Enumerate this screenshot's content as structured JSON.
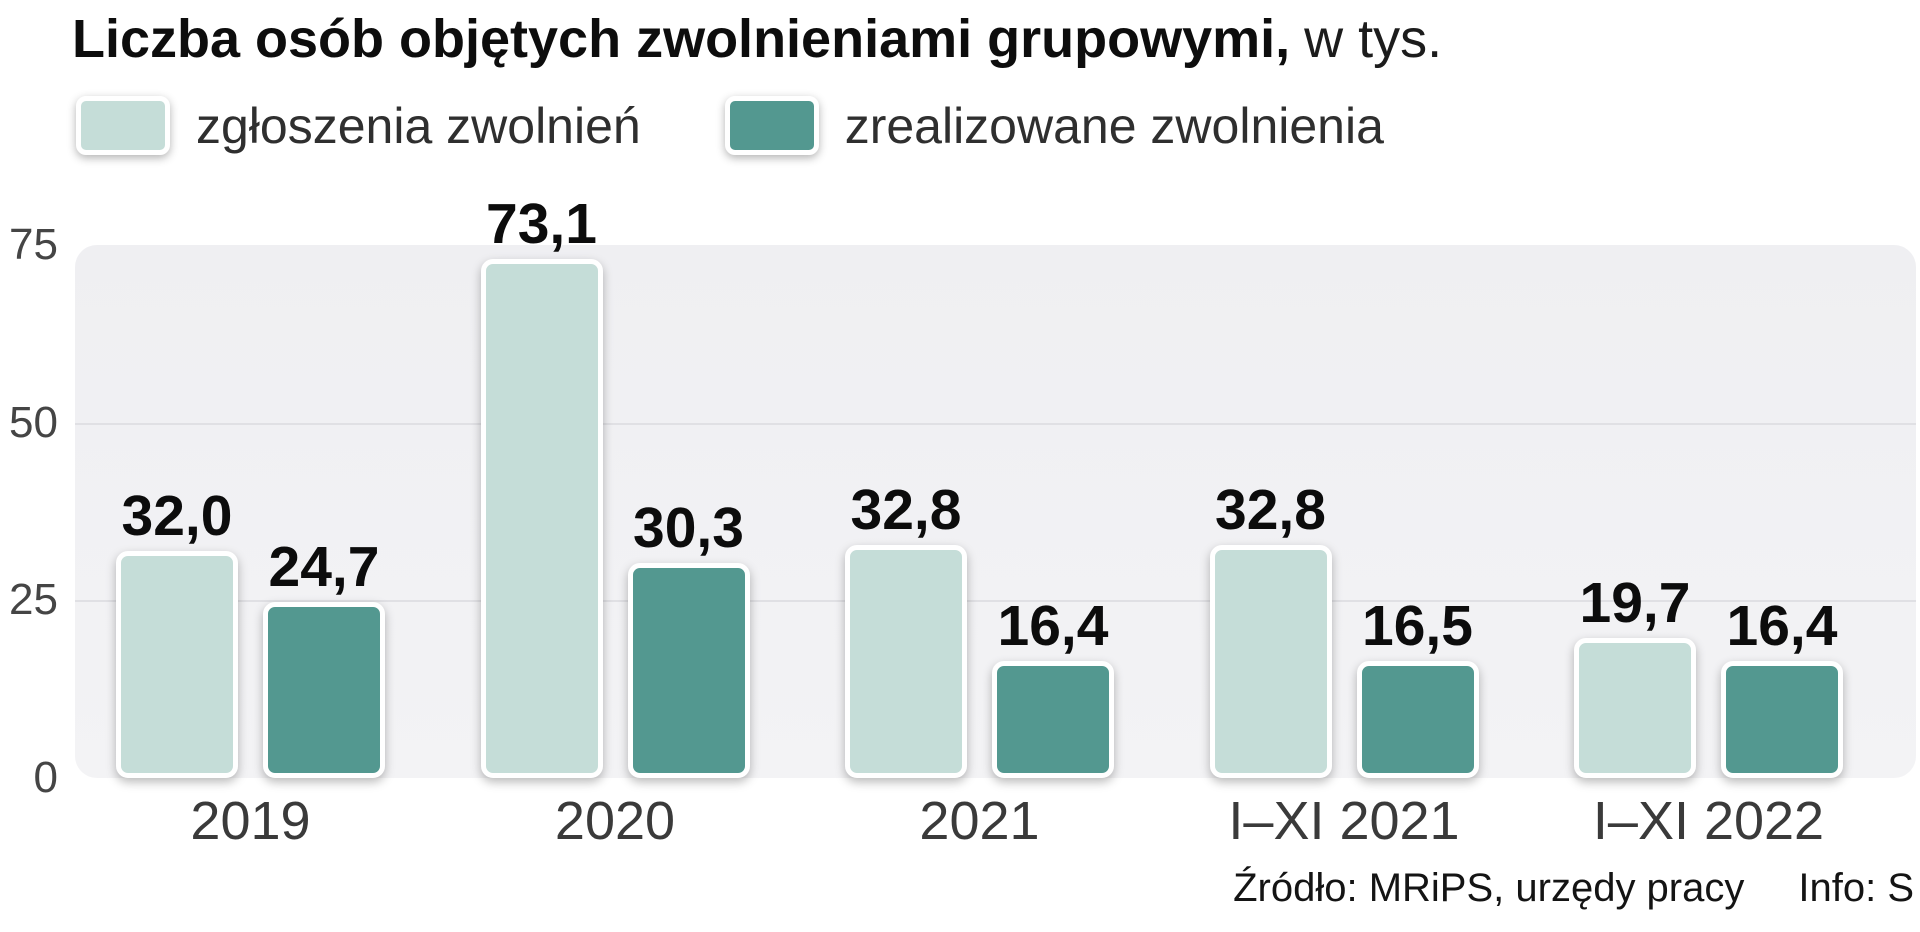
{
  "title": {
    "main": "Liczba osób objętych zwolnieniami grupowymi,",
    "suffix": "w tys."
  },
  "legend": [
    {
      "label": "zgłoszenia zwolnień",
      "color": "#c5ddd8"
    },
    {
      "label": "zrealizowane zwolnienia",
      "color": "#539890"
    }
  ],
  "footer": {
    "source": "Źródło: MRiPS, urzędy pracy",
    "info": "Info: S"
  },
  "chart_data": {
    "type": "bar",
    "title": "Liczba osób objętych zwolnieniami grupowymi, w tys.",
    "categories": [
      "2019",
      "2020",
      "2021",
      "I–XI 2021",
      "I–XI 2022"
    ],
    "series": [
      {
        "name": "zgłoszenia zwolnień",
        "color": "#c5ddd8",
        "values": [
          32.0,
          73.1,
          32.8,
          32.8,
          19.7
        ],
        "labels": [
          "32,0",
          "73,1",
          "32,8",
          "32,8",
          "19,7"
        ]
      },
      {
        "name": "zrealizowane zwolnienia",
        "color": "#539890",
        "values": [
          24.7,
          30.3,
          16.4,
          16.5,
          16.4
        ],
        "labels": [
          "24,7",
          "30,3",
          "16,4",
          "16,5",
          "16,4"
        ]
      }
    ],
    "xlabel": "",
    "ylabel": "",
    "ylim": [
      0,
      75
    ],
    "yticks": [
      75,
      50,
      25,
      0
    ],
    "grid": true,
    "legend_position": "top"
  }
}
